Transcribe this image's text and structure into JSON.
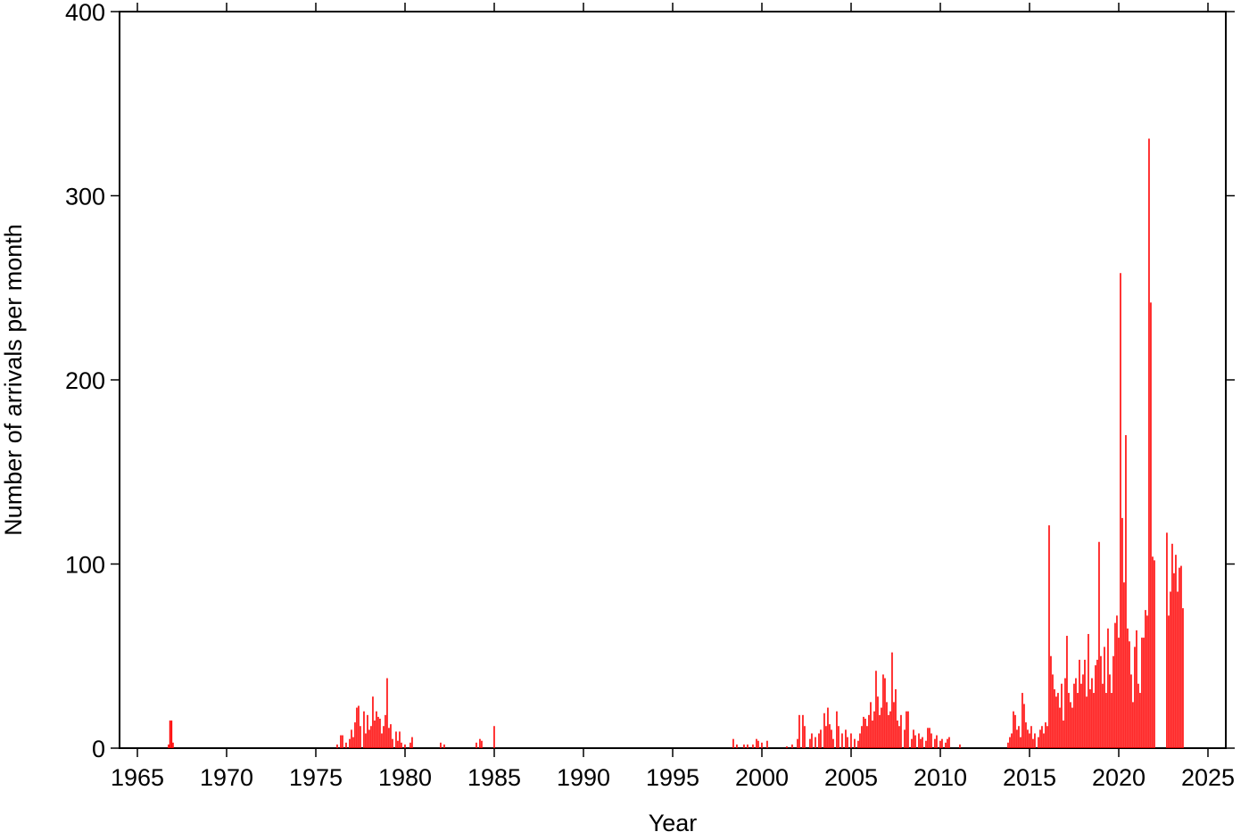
{
  "chart_data": {
    "type": "bar",
    "x_label": "Year",
    "y_label": "Number of arrivals per month",
    "color": "#ff0000",
    "xlim": [
      1964,
      2026
    ],
    "ylim": [
      0,
      400
    ],
    "xticks": [
      1965,
      1970,
      1975,
      1980,
      1985,
      1990,
      1995,
      2000,
      2005,
      2010,
      2015,
      2020,
      2025
    ],
    "yticks": [
      0,
      100,
      200,
      300,
      400
    ],
    "x": [
      1966.75,
      1966.83,
      1966.92,
      1967.0,
      1976.2,
      1976.4,
      1976.5,
      1976.7,
      1976.9,
      1977.0,
      1977.1,
      1977.2,
      1977.3,
      1977.4,
      1977.5,
      1977.7,
      1977.8,
      1977.9,
      1978.0,
      1978.1,
      1978.2,
      1978.3,
      1978.4,
      1978.5,
      1978.6,
      1978.7,
      1978.8,
      1978.9,
      1979.0,
      1979.1,
      1979.2,
      1979.3,
      1979.5,
      1979.6,
      1979.7,
      1979.8,
      1980.0,
      1980.3,
      1980.4,
      1982.0,
      1982.2,
      1984.0,
      1984.2,
      1984.3,
      1985.0,
      1998.4,
      1998.6,
      1999.0,
      1999.2,
      1999.5,
      1999.7,
      1999.8,
      2000.0,
      2000.3,
      2001.4,
      2001.7,
      2002.0,
      2002.1,
      2002.3,
      2002.4,
      2002.7,
      2002.8,
      2003.0,
      2003.2,
      2003.3,
      2003.5,
      2003.6,
      2003.7,
      2003.8,
      2003.9,
      2004.0,
      2004.2,
      2004.3,
      2004.5,
      2004.7,
      2004.8,
      2005.0,
      2005.2,
      2005.4,
      2005.5,
      2005.6,
      2005.7,
      2005.8,
      2005.9,
      2006.0,
      2006.1,
      2006.2,
      2006.3,
      2006.4,
      2006.5,
      2006.6,
      2006.7,
      2006.8,
      2006.9,
      2007.0,
      2007.1,
      2007.2,
      2007.3,
      2007.4,
      2007.5,
      2007.6,
      2007.7,
      2007.8,
      2008.0,
      2008.1,
      2008.2,
      2008.4,
      2008.5,
      2008.6,
      2008.8,
      2008.9,
      2009.0,
      2009.2,
      2009.3,
      2009.4,
      2009.5,
      2009.7,
      2009.8,
      2010.0,
      2010.1,
      2010.3,
      2010.4,
      2010.5,
      2011.1,
      2013.8,
      2013.9,
      2014.0,
      2014.1,
      2014.2,
      2014.3,
      2014.4,
      2014.5,
      2014.6,
      2014.7,
      2014.8,
      2014.9,
      2015.0,
      2015.1,
      2015.2,
      2015.3,
      2015.5,
      2015.6,
      2015.7,
      2015.8,
      2015.9,
      2016.0,
      2016.1,
      2016.2,
      2016.3,
      2016.4,
      2016.5,
      2016.6,
      2016.7,
      2016.8,
      2016.9,
      2017.0,
      2017.1,
      2017.2,
      2017.3,
      2017.4,
      2017.5,
      2017.6,
      2017.7,
      2017.8,
      2017.9,
      2018.0,
      2018.1,
      2018.2,
      2018.3,
      2018.4,
      2018.5,
      2018.6,
      2018.7,
      2018.8,
      2018.9,
      2019.0,
      2019.1,
      2019.2,
      2019.3,
      2019.4,
      2019.5,
      2019.6,
      2019.7,
      2019.8,
      2019.9,
      2020.0,
      2020.1,
      2020.2,
      2020.3,
      2020.4,
      2020.5,
      2020.6,
      2020.7,
      2020.8,
      2020.9,
      2021.0,
      2021.1,
      2021.2,
      2021.3,
      2021.4,
      2021.5,
      2021.6,
      2021.7,
      2021.8,
      2021.9,
      2022.0,
      2022.7,
      2022.8,
      2022.9,
      2023.0,
      2023.1,
      2023.2,
      2023.3,
      2023.4,
      2023.5,
      2023.6
    ],
    "values": [
      2,
      15,
      15,
      3,
      2,
      7,
      7,
      3,
      5,
      10,
      6,
      14,
      22,
      23,
      12,
      20,
      8,
      18,
      10,
      12,
      28,
      15,
      20,
      17,
      16,
      8,
      12,
      18,
      38,
      11,
      13,
      5,
      9,
      4,
      9,
      3,
      2,
      3,
      6,
      3,
      2,
      3,
      5,
      4,
      12,
      5,
      2,
      2,
      2,
      2,
      5,
      4,
      3,
      4,
      1,
      2,
      5,
      18,
      18,
      12,
      5,
      8,
      6,
      8,
      10,
      19,
      12,
      22,
      13,
      10,
      5,
      20,
      12,
      8,
      10,
      6,
      8,
      5,
      4,
      8,
      12,
      17,
      16,
      12,
      18,
      25,
      15,
      20,
      42,
      28,
      18,
      22,
      40,
      38,
      25,
      18,
      20,
      52,
      25,
      32,
      15,
      12,
      18,
      10,
      20,
      20,
      5,
      10,
      7,
      8,
      5,
      6,
      4,
      11,
      11,
      8,
      5,
      7,
      4,
      5,
      3,
      5,
      6,
      2,
      3,
      6,
      8,
      20,
      18,
      10,
      12,
      6,
      30,
      24,
      14,
      10,
      8,
      12,
      5,
      8,
      6,
      10,
      12,
      8,
      14,
      12,
      121,
      50,
      40,
      32,
      28,
      30,
      22,
      35,
      15,
      38,
      61,
      30,
      25,
      22,
      35,
      38,
      30,
      48,
      35,
      40,
      48,
      28,
      62,
      32,
      38,
      30,
      45,
      48,
      112,
      50,
      35,
      55,
      30,
      65,
      40,
      30,
      50,
      68,
      72,
      60,
      258,
      125,
      90,
      170,
      65,
      58,
      40,
      25,
      55,
      64,
      35,
      30,
      60,
      60,
      75,
      72,
      331,
      242,
      104,
      102,
      117,
      72,
      85,
      111,
      95,
      105,
      85,
      98,
      99,
      76
    ]
  }
}
